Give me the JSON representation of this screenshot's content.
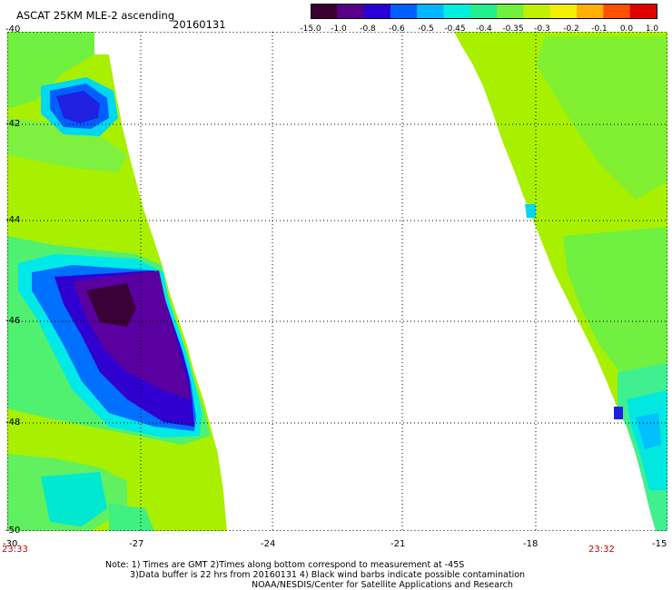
{
  "header": {
    "title": "ASCAT 25KM MLE-2 ascending",
    "date": "20160131"
  },
  "colorbar": {
    "ticks": [
      "-15.0",
      "-1.0",
      "-0.8",
      "-0.6",
      "-0.5",
      "-0.45",
      "-0.4",
      "-0.35",
      "-0.3",
      "-0.2",
      "-0.1",
      "0.0",
      "1.0"
    ],
    "colors": [
      "#3a0030",
      "#5a0088",
      "#2a00d8",
      "#0060ff",
      "#00b8ff",
      "#00f0e0",
      "#20f090",
      "#70f040",
      "#c0f000",
      "#f0f000",
      "#ffb000",
      "#ff5000",
      "#e00000"
    ]
  },
  "map": {
    "lat_labels": [
      "-40",
      "-42",
      "-44",
      "-46",
      "-48",
      "-50"
    ],
    "lon_labels": [
      "-30",
      "-27",
      "-24",
      "-21",
      "-18",
      "-15"
    ],
    "pass_times": {
      "left": "23:33",
      "right": "23:32"
    }
  },
  "footer": {
    "line1": "Note: 1) Times are GMT 2)Times along bottom correspond to measurement at -45S",
    "line2": "3)Data buffer is 22 hrs from 20160131 4) Black wind barbs indicate possible contamination",
    "line3": "NOAA/NESDIS/Center for Satellite Applications and Research"
  }
}
